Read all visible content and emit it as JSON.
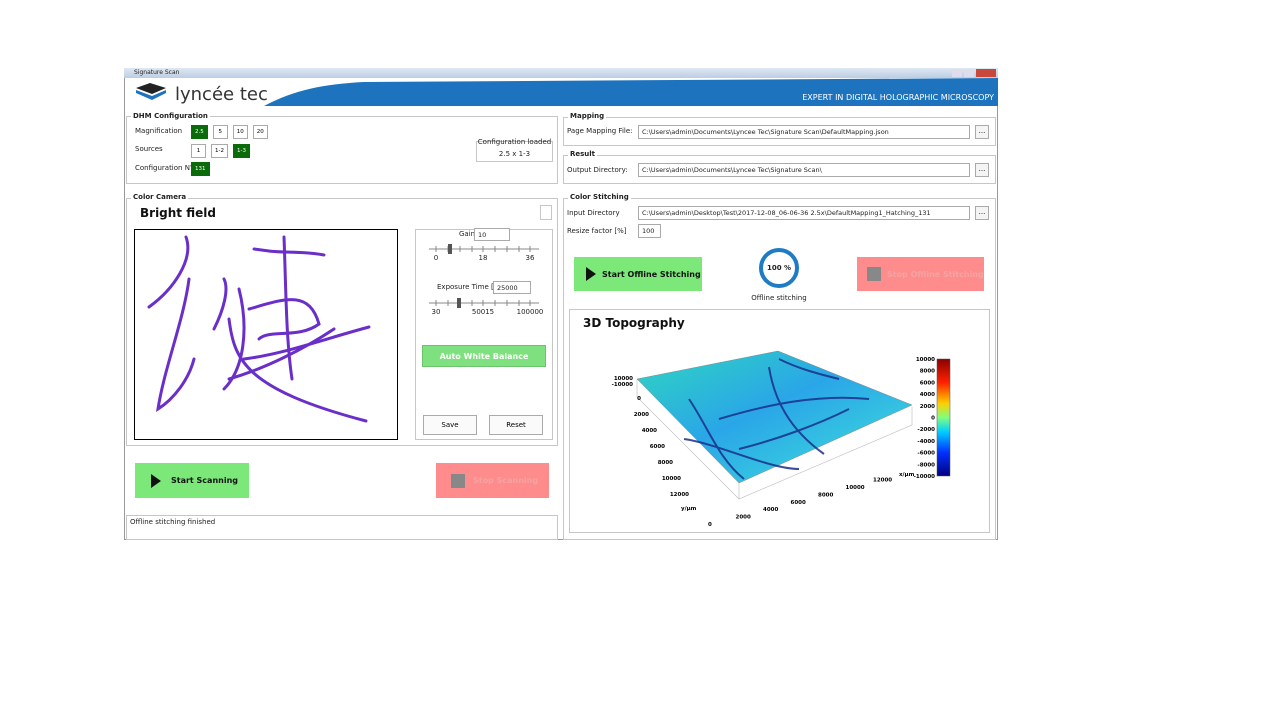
{
  "window": {
    "title": "Signature Scan"
  },
  "header": {
    "logo": "lyncée tec",
    "tagline": "EXPERT IN DIGITAL HOLOGRAPHIC MICROSCOPY"
  },
  "dhm_configuration": {
    "title": "DHM Configuration",
    "magnification": {
      "label": "Magnification",
      "options": [
        "2.5",
        "5",
        "10",
        "20"
      ],
      "selected": 0
    },
    "sources": {
      "label": "Sources",
      "options": [
        "1",
        "1-2",
        "1-3"
      ],
      "selected": 2
    },
    "configuration_number": {
      "label": "Configuration N°",
      "value": "131"
    },
    "configuration_loaded": {
      "label": "Configuration loaded",
      "value": "2.5 x 1-3"
    }
  },
  "mapping": {
    "title": "Mapping",
    "label": "Page Mapping File:",
    "value": "C:\\Users\\admin\\Documents\\Lyncee Tec\\Signature Scan\\DefaultMapping.json",
    "browse": "..."
  },
  "result": {
    "title": "Result",
    "label": "Output Directory:",
    "value": "C:\\Users\\admin\\Documents\\Lyncee Tec\\Signature Scan\\",
    "browse": "..."
  },
  "color_camera": {
    "title": "Color Camera",
    "view_title": "Bright field",
    "gain": {
      "label": "Gain",
      "value": "10",
      "ticks": [
        "0",
        "18",
        "36"
      ]
    },
    "exposure": {
      "label": "Exposure Time [us]",
      "value": "25000",
      "ticks": [
        "30",
        "50015",
        "100000"
      ]
    },
    "auto_white_balance": "Auto White Balance",
    "save": "Save",
    "reset": "Reset"
  },
  "scanning": {
    "start": "Start Scanning",
    "stop": "Stop Scanning"
  },
  "status": "Offline stitching finished",
  "color_stitching": {
    "title": "Color Stitching",
    "input_directory": {
      "label": "Input Directory",
      "value": "C:\\Users\\admin\\Desktop\\Test\\2017-12-08_06-06-36 2.5x\\DefaultMapping1_Hatching_131",
      "browse": "..."
    },
    "resize_factor": {
      "label": "Resize factor [%]",
      "value": "100"
    },
    "start": "Start Offline Stitching",
    "stop": "Stop Offline Stitching",
    "progress": "100 %",
    "progress_label": "Offline stitching",
    "topography": {
      "title": "3D Topography",
      "colorbar_ticks": [
        "10000",
        "8000",
        "6000",
        "4000",
        "2000",
        "0",
        "-2000",
        "-4000",
        "-6000",
        "-8000",
        "-10000"
      ],
      "z_ticks": [
        "10000",
        "-10000"
      ],
      "y_ticks": [
        "0",
        "2000",
        "4000",
        "6000",
        "8000",
        "10000",
        "12000"
      ],
      "y_label": "y/µm",
      "x_ticks": [
        "0",
        "2000",
        "4000",
        "6000",
        "8000",
        "10000",
        "12000"
      ],
      "x_label": "x/µm"
    }
  }
}
